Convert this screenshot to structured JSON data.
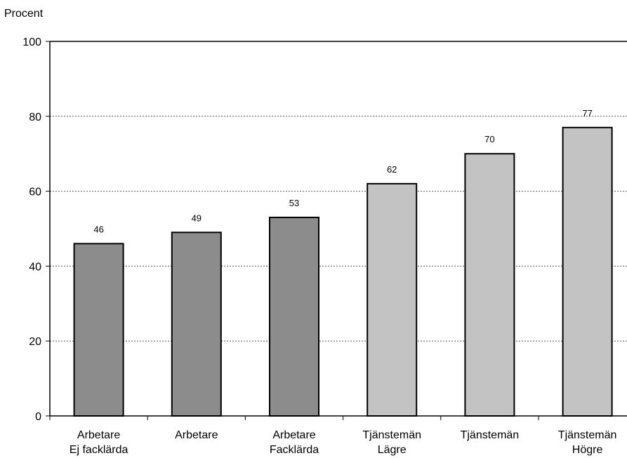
{
  "chart_data": {
    "type": "bar",
    "ylabel": "Procent",
    "xlabel": "",
    "ylim": [
      0,
      100
    ],
    "yticks": [
      0,
      20,
      40,
      60,
      80,
      100
    ],
    "grid": "horizontal dotted",
    "categories": [
      [
        "Arbetare",
        "Ej facklärda"
      ],
      [
        "Arbetare"
      ],
      [
        "Arbetare",
        "Facklärda"
      ],
      [
        "Tjänstemän",
        "Lägre"
      ],
      [
        "Tjänstemän"
      ],
      [
        "Tjänstemän",
        "Högre"
      ]
    ],
    "values": [
      46,
      49,
      53,
      62,
      70,
      77
    ],
    "data_labels": [
      "46",
      "49",
      "53",
      "62",
      "70",
      "77"
    ],
    "bar_colors": [
      "#8c8c8c",
      "#8c8c8c",
      "#8c8c8c",
      "#c3c3c3",
      "#c3c3c3",
      "#c3c3c3"
    ],
    "bar_edge_color": "#000000"
  }
}
